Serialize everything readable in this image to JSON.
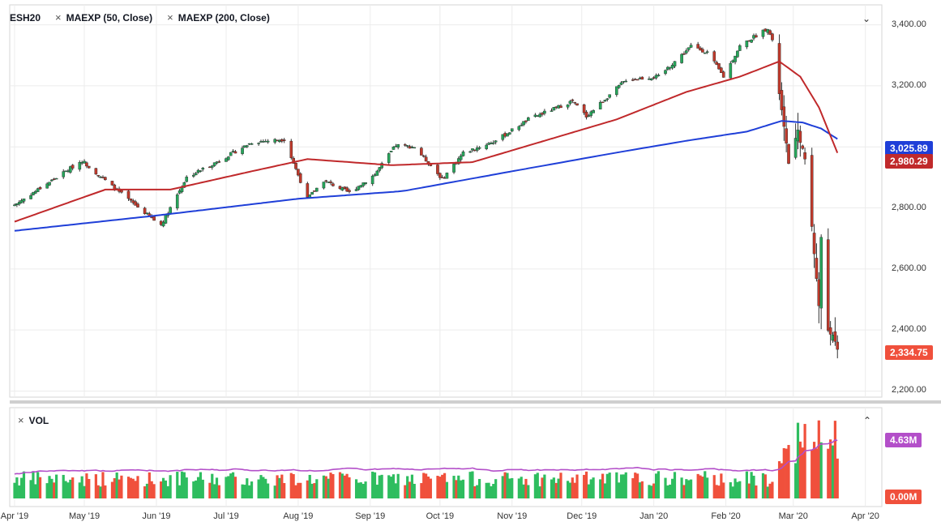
{
  "legend": {
    "symbol": "ESH20",
    "ma50_label": "MAEXP (50, Close)",
    "ma200_label": "MAEXP (200, Close)",
    "close_icon": "x-icon"
  },
  "volume_panel": {
    "label": "VOL"
  },
  "price_badges": {
    "ma200": "3,025.89",
    "ma50": "2,980.29",
    "last": "2,334.75",
    "vol_ma": "4.63M",
    "vol_zero": "0.00M"
  },
  "colors": {
    "up": "#26a65b",
    "down": "#c0392b",
    "ma50": "#c0292b",
    "ma200": "#1f3fd8",
    "vol_up": "#2ebd5f",
    "vol_down": "#f0503c",
    "vol_ma": "#b34fc9",
    "last_badge": "#f0503c"
  },
  "chart_data": {
    "type": "candlestick",
    "symbol": "ESH20",
    "y_ticks": [
      "3,400.00",
      "3,200.00",
      "3,000.00",
      "2,800.00",
      "2,600.00",
      "2,400.00",
      "2,200.00"
    ],
    "x_ticks": [
      "Apr '19",
      "May '19",
      "Jun '19",
      "Jul '19",
      "Aug '19",
      "Sep '19",
      "Oct '19",
      "Nov '19",
      "Dec '19",
      "Jan '20",
      "Feb '20",
      "Mar '20",
      "Apr '20"
    ],
    "x_range": [
      "2019-04-01",
      "2020-04-06"
    ],
    "y_range": [
      2180,
      3460
    ],
    "last_close": 2334.75,
    "ma50_last": 2980.29,
    "ma200_last": 3025.89,
    "close_anchors": [
      [
        "2019-04-01",
        2810
      ],
      [
        "2019-04-15",
        2880
      ],
      [
        "2019-04-30",
        2955
      ],
      [
        "2019-05-13",
        2870
      ],
      [
        "2019-05-31",
        2760
      ],
      [
        "2019-06-03",
        2745
      ],
      [
        "2019-06-14",
        2900
      ],
      [
        "2019-06-28",
        2955
      ],
      [
        "2019-07-12",
        3015
      ],
      [
        "2019-07-26",
        3025
      ],
      [
        "2019-08-05",
        2830
      ],
      [
        "2019-08-12",
        2890
      ],
      [
        "2019-08-23",
        2850
      ],
      [
        "2019-09-03",
        2910
      ],
      [
        "2019-09-12",
        3005
      ],
      [
        "2019-09-20",
        3000
      ],
      [
        "2019-10-02",
        2895
      ],
      [
        "2019-10-11",
        2980
      ],
      [
        "2019-10-25",
        3020
      ],
      [
        "2019-11-08",
        3090
      ],
      [
        "2019-11-27",
        3150
      ],
      [
        "2019-12-03",
        3100
      ],
      [
        "2019-12-20",
        3220
      ],
      [
        "2020-01-03",
        3230
      ],
      [
        "2020-01-17",
        3330
      ],
      [
        "2020-01-24",
        3310
      ],
      [
        "2020-01-31",
        3230
      ],
      [
        "2020-02-07",
        3330
      ],
      [
        "2020-02-19",
        3390
      ],
      [
        "2020-02-21",
        3345
      ],
      [
        "2020-02-28",
        2950
      ],
      [
        "2020-03-03",
        3050
      ],
      [
        "2020-03-06",
        2960
      ],
      [
        "2020-03-09",
        2740
      ],
      [
        "2020-03-12",
        2480
      ],
      [
        "2020-03-13",
        2700
      ],
      [
        "2020-03-16",
        2400
      ],
      [
        "2020-03-18",
        2380
      ],
      [
        "2020-03-20",
        2334.75
      ]
    ],
    "ma50_anchors": [
      [
        "2019-04-01",
        2755
      ],
      [
        "2019-05-10",
        2860
      ],
      [
        "2019-06-07",
        2860
      ],
      [
        "2019-07-12",
        2920
      ],
      [
        "2019-08-05",
        2960
      ],
      [
        "2019-09-10",
        2940
      ],
      [
        "2019-10-15",
        2950
      ],
      [
        "2019-11-15",
        3020
      ],
      [
        "2019-12-16",
        3090
      ],
      [
        "2020-01-15",
        3180
      ],
      [
        "2020-02-07",
        3230
      ],
      [
        "2020-02-24",
        3280
      ],
      [
        "2020-03-04",
        3230
      ],
      [
        "2020-03-12",
        3130
      ],
      [
        "2020-03-20",
        2980.29
      ]
    ],
    "ma200_anchors": [
      [
        "2019-04-01",
        2725
      ],
      [
        "2019-06-01",
        2775
      ],
      [
        "2019-08-01",
        2830
      ],
      [
        "2019-09-15",
        2855
      ],
      [
        "2019-11-01",
        2920
      ],
      [
        "2019-12-15",
        2980
      ],
      [
        "2020-01-15",
        3020
      ],
      [
        "2020-02-10",
        3050
      ],
      [
        "2020-02-25",
        3085
      ],
      [
        "2020-03-05",
        3080
      ],
      [
        "2020-03-13",
        3060
      ],
      [
        "2020-03-20",
        3025.89
      ]
    ],
    "volume_note": "daily volume bars (green up / red down) with purple moving average; scale 0.00M to about 8M"
  }
}
